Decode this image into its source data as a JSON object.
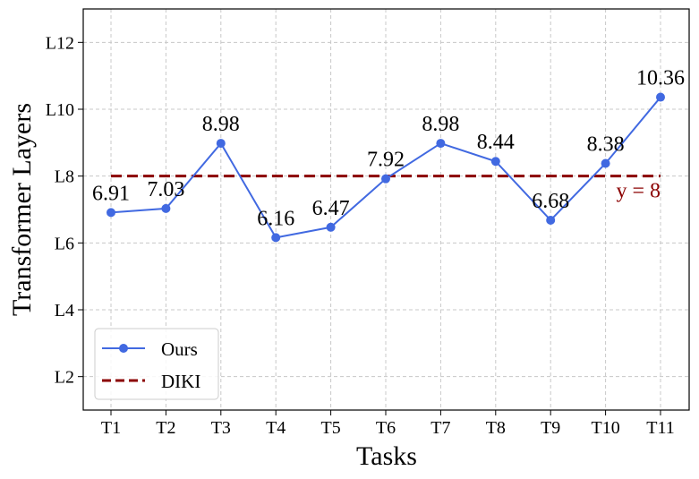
{
  "chart_data": {
    "type": "line",
    "xlabel": "Tasks",
    "ylabel": "Transformer Layers",
    "categories": [
      "T1",
      "T2",
      "T3",
      "T4",
      "T5",
      "T6",
      "T7",
      "T8",
      "T9",
      "T10",
      "T11"
    ],
    "ylim": [
      1,
      13
    ],
    "yticks": [
      2,
      4,
      6,
      8,
      10,
      12
    ],
    "ytick_labels": [
      "L2",
      "L4",
      "L6",
      "L8",
      "L10",
      "L12"
    ],
    "grid": true,
    "legend_position": "bottom-left",
    "series": [
      {
        "name": "Ours",
        "values": [
          6.91,
          7.03,
          8.98,
          6.16,
          6.47,
          7.92,
          8.98,
          8.44,
          6.68,
          8.38,
          10.36
        ],
        "data_labels": [
          "6.91",
          "7.03",
          "8.98",
          "6.16",
          "6.47",
          "7.92",
          "8.98",
          "8.44",
          "6.68",
          "8.38",
          "10.36"
        ],
        "color": "#4169e1",
        "style": "solid-with-markers"
      },
      {
        "name": "DIKI",
        "values": [
          8,
          8,
          8,
          8,
          8,
          8,
          8,
          8,
          8,
          8,
          8
        ],
        "color": "#8b0000",
        "style": "dashed"
      }
    ],
    "annotations": [
      {
        "text": "y = 8",
        "color": "#8b0000"
      }
    ]
  }
}
